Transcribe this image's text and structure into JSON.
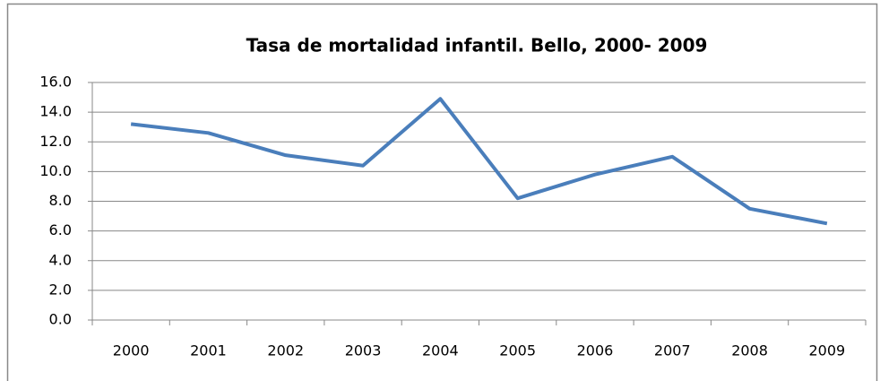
{
  "chart_data": {
    "type": "line",
    "title": "Tasa de mortalidad infantil. Bello, 2000- 2009",
    "categories": [
      "2000",
      "2001",
      "2002",
      "2003",
      "2004",
      "2005",
      "2006",
      "2007",
      "2008",
      "2009"
    ],
    "values": [
      13.2,
      12.6,
      11.1,
      10.4,
      14.9,
      8.2,
      9.8,
      11.0,
      7.5,
      6.5
    ],
    "color": "#4a7ebb",
    "ylim": [
      0,
      16
    ],
    "yticks": [
      {
        "value": 0,
        "label": "0.0"
      },
      {
        "value": 2,
        "label": "2.0"
      },
      {
        "value": 4,
        "label": "4.0"
      },
      {
        "value": 6,
        "label": "6.0"
      },
      {
        "value": 8,
        "label": "8.0"
      },
      {
        "value": 10,
        "label": "10.0"
      },
      {
        "value": 12,
        "label": "12.0"
      },
      {
        "value": 14,
        "label": "14.0"
      },
      {
        "value": 16,
        "label": "16.0"
      }
    ],
    "grid": true
  }
}
